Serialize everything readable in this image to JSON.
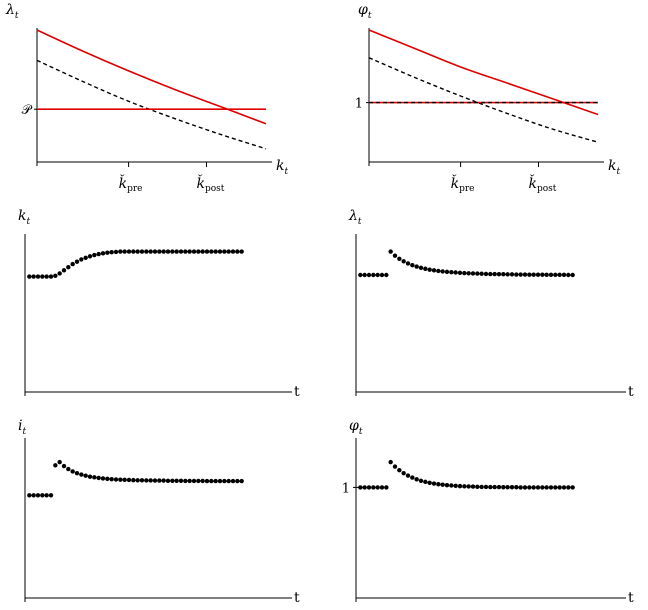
{
  "chart_data": [
    {
      "id": "p1",
      "type": "line",
      "ylabel": "λ",
      "ylabel_sub": "t",
      "xlabel": "k",
      "xlabel_sub": "t",
      "xlim": [
        0,
        100
      ],
      "ylim": [
        0,
        100
      ],
      "y_ticks": [
        {
          "value": 40,
          "label": "𝒫"
        }
      ],
      "x_ticks": [
        {
          "value": 40,
          "label": "ǩ",
          "sub": "pre"
        },
        {
          "value": 74,
          "label": "ǩ",
          "sub": "post"
        }
      ],
      "series": [
        {
          "style": "red",
          "x": [
            0,
            20,
            40,
            60,
            80,
            100
          ],
          "y": [
            100,
            84,
            69,
            55,
            42,
            29
          ]
        },
        {
          "style": "dashed",
          "x": [
            0,
            20,
            40,
            60,
            80,
            100
          ],
          "y": [
            77,
            61,
            46,
            33,
            21,
            10
          ]
        },
        {
          "style": "red",
          "x": [
            0,
            100
          ],
          "y": [
            40,
            40
          ]
        }
      ]
    },
    {
      "id": "p2",
      "type": "line",
      "ylabel": "φ",
      "ylabel_sub": "t",
      "xlabel": "k",
      "xlabel_sub": "t",
      "xlim": [
        0,
        100
      ],
      "ylim": [
        0,
        100
      ],
      "y_ticks": [
        {
          "value": 45,
          "label": "1"
        }
      ],
      "x_ticks": [
        {
          "value": 40,
          "label": "ǩ",
          "sub": "pre"
        },
        {
          "value": 74,
          "label": "ǩ",
          "sub": "post"
        }
      ],
      "series": [
        {
          "style": "red",
          "x": [
            0,
            20,
            40,
            60,
            80,
            100
          ],
          "y": [
            100,
            86,
            72,
            60,
            48,
            36
          ]
        },
        {
          "style": "dashed",
          "x": [
            0,
            20,
            40,
            60,
            80,
            100
          ],
          "y": [
            79,
            64,
            50,
            37,
            25,
            15
          ]
        },
        {
          "style": "red",
          "x": [
            0,
            100
          ],
          "y": [
            45,
            45
          ]
        },
        {
          "style": "dashed",
          "x": [
            0,
            100
          ],
          "y": [
            45,
            45
          ]
        }
      ]
    },
    {
      "id": "p3",
      "type": "scatter",
      "ylabel": "k",
      "ylabel_sub": "t",
      "xlabel": "t",
      "xlim": [
        0,
        60
      ],
      "ylim": [
        0,
        100
      ],
      "y_ticks": [],
      "series": [
        {
          "style": "dots",
          "x": [
            1,
            2,
            3,
            4,
            5,
            6,
            7,
            8,
            9,
            10,
            11,
            12,
            13,
            14,
            15,
            16,
            17,
            18,
            19,
            20,
            21,
            22,
            23,
            24,
            25,
            26,
            27,
            28,
            29,
            30,
            31,
            32,
            33,
            34,
            35,
            36,
            37,
            38,
            39,
            40,
            41,
            42,
            43,
            44,
            45,
            46,
            47,
            48,
            49,
            50
          ],
          "y": [
            74,
            74,
            74,
            74,
            74,
            74,
            74.5,
            76,
            78,
            80,
            82,
            83.5,
            85,
            86,
            87,
            87.8,
            88.4,
            88.9,
            89.3,
            89.6,
            89.8,
            90,
            90,
            90,
            90,
            90,
            90,
            90,
            90,
            90,
            90,
            90,
            90,
            90,
            90,
            90,
            90,
            90,
            90,
            90,
            90,
            90,
            90,
            90,
            90,
            90,
            90,
            90,
            90,
            90
          ]
        }
      ]
    },
    {
      "id": "p4",
      "type": "scatter",
      "ylabel": "λ",
      "ylabel_sub": "t",
      "xlabel": "t",
      "xlim": [
        0,
        60
      ],
      "ylim": [
        0,
        100
      ],
      "y_ticks": [],
      "series": [
        {
          "style": "dots",
          "x": [
            1,
            2,
            3,
            4,
            5,
            6,
            7,
            8,
            9,
            10,
            11,
            12,
            13,
            14,
            15,
            16,
            17,
            18,
            19,
            20,
            21,
            22,
            23,
            24,
            25,
            26,
            27,
            28,
            29,
            30,
            31,
            32,
            33,
            34,
            35,
            36,
            37,
            38,
            39,
            40,
            41,
            42,
            43,
            44,
            45,
            46,
            47,
            48,
            49,
            50
          ],
          "y": [
            75,
            75,
            75,
            75,
            75,
            75,
            75,
            90,
            87.4,
            85.4,
            83.8,
            82.4,
            81.3,
            80.4,
            79.6,
            79,
            78.4,
            78,
            77.6,
            77.3,
            77,
            76.8,
            76.6,
            76.4,
            76.2,
            76.1,
            76,
            75.9,
            75.8,
            75.7,
            75.6,
            75.6,
            75.5,
            75.5,
            75.4,
            75.4,
            75.3,
            75.3,
            75.3,
            75.2,
            75.2,
            75.2,
            75.2,
            75.1,
            75.1,
            75.1,
            75.1,
            75.1,
            75,
            75
          ]
        }
      ]
    },
    {
      "id": "p5",
      "type": "scatter",
      "ylabel": "i",
      "ylabel_sub": "t",
      "xlabel": "t",
      "xlim": [
        0,
        60
      ],
      "ylim": [
        0,
        100
      ],
      "y_ticks": [],
      "series": [
        {
          "style": "dots",
          "x": [
            1,
            2,
            3,
            4,
            5,
            6,
            7,
            8,
            9,
            10,
            11,
            12,
            13,
            14,
            15,
            16,
            17,
            18,
            19,
            20,
            21,
            22,
            23,
            24,
            25,
            26,
            27,
            28,
            29,
            30,
            31,
            32,
            33,
            34,
            35,
            36,
            37,
            38,
            39,
            40,
            41,
            42,
            43,
            44,
            45,
            46,
            47,
            48,
            49,
            50
          ],
          "y": [
            65,
            65,
            65,
            65,
            65,
            65,
            84,
            86,
            83.5,
            81.6,
            80.1,
            79,
            78.1,
            77.4,
            76.8,
            76.4,
            76,
            75.7,
            75.4,
            75.2,
            75,
            74.9,
            74.8,
            74.7,
            74.6,
            74.5,
            74.5,
            74.4,
            74.4,
            74.3,
            74.3,
            74.3,
            74.2,
            74.2,
            74.2,
            74.2,
            74.1,
            74.1,
            74.1,
            74.1,
            74.1,
            74,
            74,
            74,
            74,
            74,
            74,
            74,
            74,
            74
          ]
        }
      ]
    },
    {
      "id": "p6",
      "type": "scatter",
      "ylabel": "φ",
      "ylabel_sub": "t",
      "xlabel": "t",
      "xlim": [
        0,
        60
      ],
      "ylim": [
        0,
        100
      ],
      "y_ticks": [
        {
          "value": 70,
          "label": "1"
        }
      ],
      "series": [
        {
          "style": "dots",
          "x": [
            1,
            2,
            3,
            4,
            5,
            6,
            7,
            8,
            9,
            10,
            11,
            12,
            13,
            14,
            15,
            16,
            17,
            18,
            19,
            20,
            21,
            22,
            23,
            24,
            25,
            26,
            27,
            28,
            29,
            30,
            31,
            32,
            33,
            34,
            35,
            36,
            37,
            38,
            39,
            40,
            41,
            42,
            43,
            44,
            45,
            46,
            47,
            48,
            49,
            50
          ],
          "y": [
            70,
            70,
            70,
            70,
            70,
            70,
            70,
            86,
            83.2,
            80.9,
            79,
            77.5,
            76.2,
            75.1,
            74.2,
            73.5,
            72.9,
            72.4,
            72,
            71.7,
            71.4,
            71.2,
            71,
            70.8,
            70.7,
            70.6,
            70.5,
            70.4,
            70.3,
            70.3,
            70.2,
            70.2,
            70.2,
            70.1,
            70.1,
            70.1,
            70.1,
            70,
            70,
            70,
            70,
            70,
            70,
            70,
            70,
            70,
            70,
            70,
            70,
            70
          ]
        }
      ]
    }
  ]
}
